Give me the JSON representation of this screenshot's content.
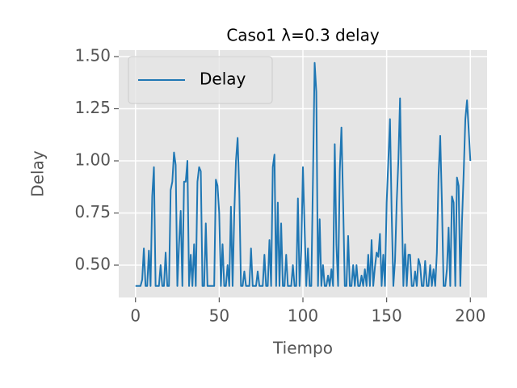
{
  "chart_data": {
    "type": "line",
    "title": "Caso1 λ=0.3 delay",
    "xlabel": "Tiempo",
    "ylabel": "Delay",
    "x": [
      0,
      1,
      2,
      3,
      4,
      5,
      6,
      7,
      8,
      9,
      10,
      11,
      12,
      13,
      14,
      15,
      16,
      17,
      18,
      19,
      20,
      21,
      22,
      23,
      24,
      25,
      26,
      27,
      28,
      29,
      30,
      31,
      32,
      33,
      34,
      35,
      36,
      37,
      38,
      39,
      40,
      41,
      42,
      43,
      44,
      45,
      46,
      47,
      48,
      49,
      50,
      51,
      52,
      53,
      54,
      55,
      56,
      57,
      58,
      59,
      60,
      61,
      62,
      63,
      64,
      65,
      66,
      67,
      68,
      69,
      70,
      71,
      72,
      73,
      74,
      75,
      76,
      77,
      78,
      79,
      80,
      81,
      82,
      83,
      84,
      85,
      86,
      87,
      88,
      89,
      90,
      91,
      92,
      93,
      94,
      95,
      96,
      97,
      98,
      99,
      100,
      101,
      102,
      103,
      104,
      105,
      106,
      107,
      108,
      109,
      110,
      111,
      112,
      113,
      114,
      115,
      116,
      117,
      118,
      119,
      120,
      121,
      122,
      123,
      124,
      125,
      126,
      127,
      128,
      129,
      130,
      131,
      132,
      133,
      134,
      135,
      136,
      137,
      138,
      139,
      140,
      141,
      142,
      143,
      144,
      145,
      146,
      147,
      148,
      149,
      150,
      151,
      152,
      153,
      154,
      155,
      156,
      157,
      158,
      159,
      160,
      161,
      162,
      163,
      164,
      165,
      166,
      167,
      168,
      169,
      170,
      171,
      172,
      173,
      174,
      175,
      176,
      177,
      178,
      179,
      180,
      181,
      182,
      183,
      184,
      185,
      186,
      187,
      188,
      189,
      190,
      191,
      192,
      193,
      194,
      195,
      196,
      197,
      198,
      199,
      200
    ],
    "series": [
      {
        "name": "Delay",
        "color": "#1f77b4",
        "values": [
          0.4,
          0.4,
          0.4,
          0.4,
          0.43,
          0.58,
          0.4,
          0.4,
          0.57,
          0.4,
          0.83,
          0.97,
          0.4,
          0.4,
          0.4,
          0.5,
          0.4,
          0.4,
          0.56,
          0.4,
          0.4,
          0.86,
          0.9,
          1.04,
          0.98,
          0.4,
          0.6,
          0.76,
          0.4,
          0.9,
          0.9,
          1.0,
          0.4,
          0.55,
          0.4,
          0.6,
          0.4,
          0.9,
          0.97,
          0.95,
          0.4,
          0.4,
          0.7,
          0.4,
          0.4,
          0.4,
          0.4,
          0.4,
          0.91,
          0.88,
          0.75,
          0.4,
          0.6,
          0.4,
          0.4,
          0.5,
          0.4,
          0.78,
          0.4,
          0.75,
          1.0,
          1.11,
          0.85,
          0.4,
          0.4,
          0.47,
          0.4,
          0.4,
          0.4,
          0.58,
          0.4,
          0.4,
          0.4,
          0.47,
          0.4,
          0.4,
          0.4,
          0.55,
          0.4,
          0.4,
          0.62,
          0.4,
          0.97,
          1.03,
          0.4,
          0.8,
          0.4,
          0.7,
          0.4,
          0.4,
          0.55,
          0.4,
          0.4,
          0.4,
          0.5,
          0.4,
          0.4,
          0.82,
          0.4,
          0.57,
          0.97,
          0.68,
          0.4,
          0.58,
          0.4,
          0.4,
          0.92,
          1.47,
          1.33,
          0.4,
          0.72,
          0.4,
          0.5,
          0.4,
          0.4,
          0.45,
          0.4,
          0.48,
          0.4,
          1.08,
          0.6,
          0.4,
          0.95,
          1.16,
          0.8,
          0.4,
          0.4,
          0.64,
          0.4,
          0.4,
          0.5,
          0.4,
          0.5,
          0.4,
          0.4,
          0.45,
          0.4,
          0.48,
          0.4,
          0.55,
          0.4,
          0.62,
          0.4,
          0.49,
          0.56,
          0.54,
          0.65,
          0.4,
          0.55,
          0.4,
          0.8,
          1.0,
          1.2,
          0.75,
          0.4,
          0.52,
          0.8,
          1.0,
          1.3,
          0.8,
          0.4,
          0.6,
          0.4,
          0.55,
          0.55,
          0.4,
          0.4,
          0.47,
          0.4,
          0.53,
          0.5,
          0.4,
          0.4,
          0.52,
          0.4,
          0.4,
          0.5,
          0.4,
          0.48,
          0.4,
          0.56,
          0.93,
          1.12,
          0.8,
          0.4,
          0.4,
          0.48,
          0.68,
          0.4,
          0.83,
          0.8,
          0.4,
          0.92,
          0.88,
          0.4,
          0.71,
          0.94,
          1.2,
          1.29,
          1.15,
          1.0
        ]
      }
    ],
    "xlim": [
      -10,
      210
    ],
    "ylim": [
      0.345,
      1.531
    ],
    "xticks": [
      0,
      50,
      100,
      150,
      200
    ],
    "yticks": [
      {
        "value": 0.5,
        "label": "0.50"
      },
      0.75,
      {
        "value": 1.0,
        "label": "1.00"
      },
      1.25,
      {
        "value": 1.5,
        "label": "1.50"
      }
    ],
    "grid": true,
    "legend": "upper left"
  }
}
